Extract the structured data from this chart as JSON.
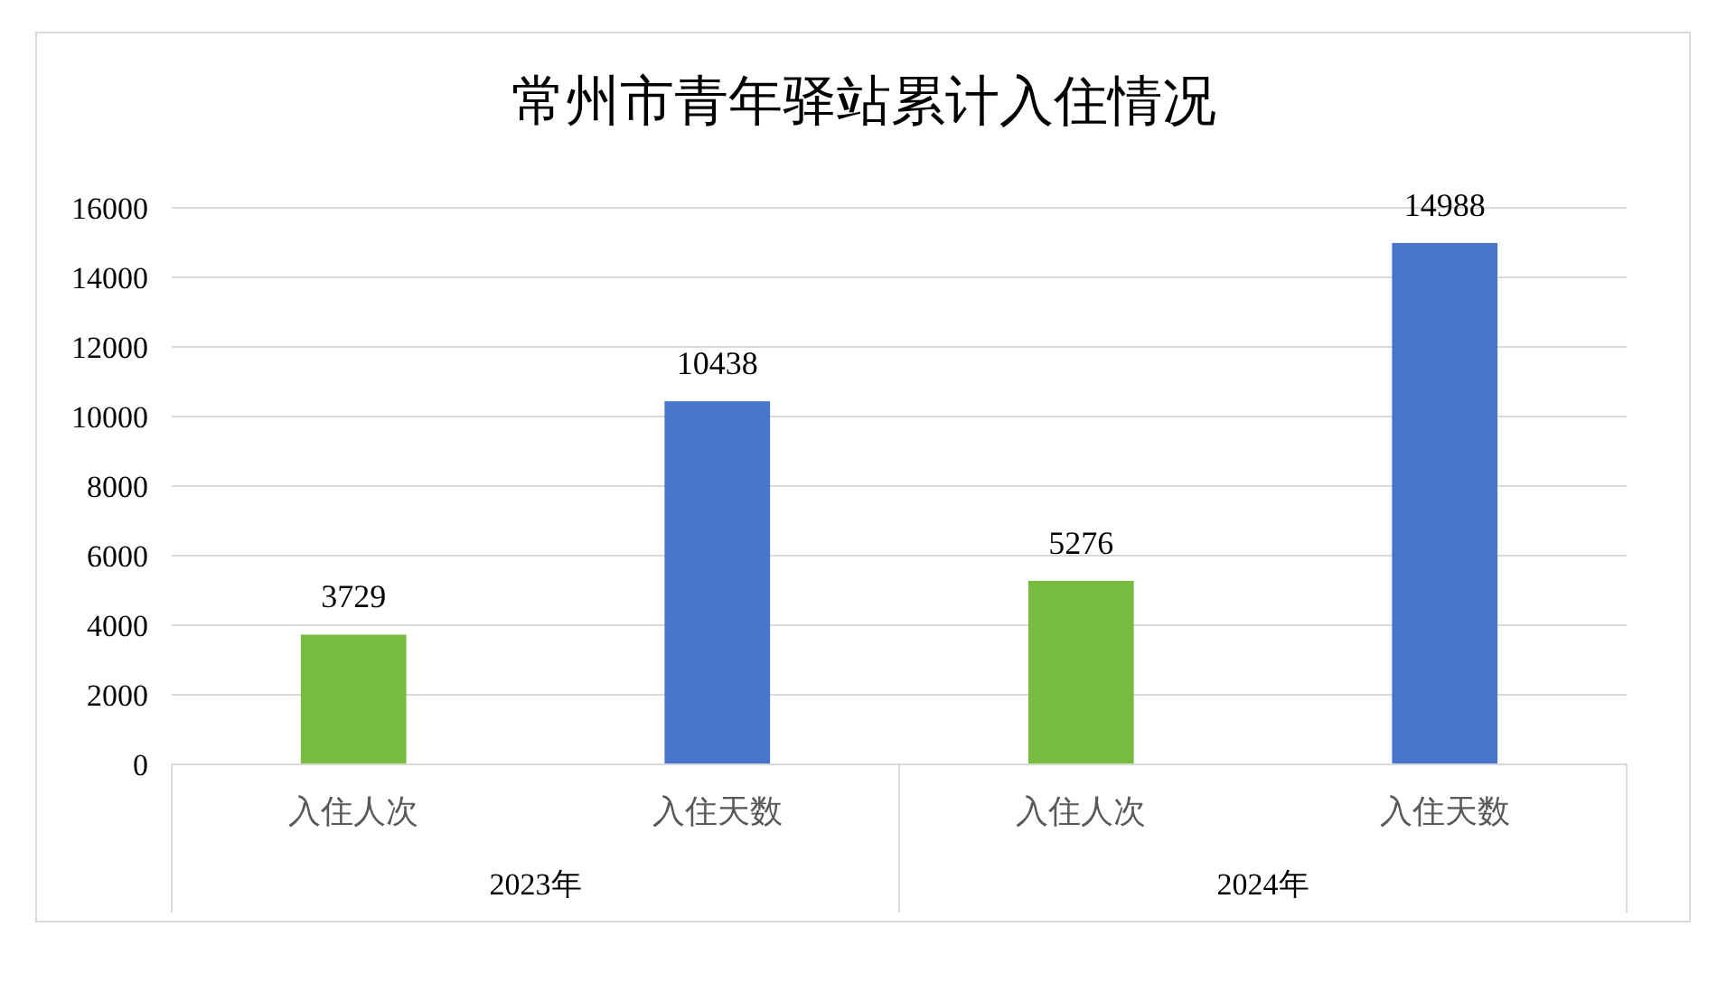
{
  "chart_data": {
    "type": "bar",
    "title": "常州市青年驿站累计入住情况",
    "categories": [
      "入住人次",
      "入住天数",
      "入住人次",
      "入住天数"
    ],
    "values": [
      3729,
      10438,
      5276,
      14988
    ],
    "colors": [
      "#77bb41",
      "#4874cb",
      "#77bb41",
      "#4874cb"
    ],
    "annotations": [
      "2023年",
      "2024年"
    ],
    "ylim": [
      0,
      16000
    ],
    "yticks": [
      0,
      2000,
      4000,
      6000,
      8000,
      10000,
      12000,
      14000,
      16000
    ],
    "grid": "y",
    "data_labels": true
  }
}
